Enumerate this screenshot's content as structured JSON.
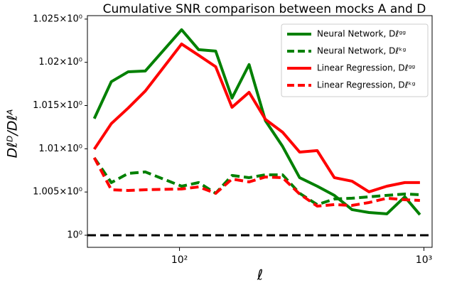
{
  "chart_data": {
    "type": "line",
    "title": "Cumulative SNR comparison between mocks A and D",
    "xlabel": "ℓ",
    "ylabel": "Dℓᴰ/Dℓᴬ",
    "xscale": "log",
    "xlim": [
      42,
      1080
    ],
    "ylim": [
      0.9986,
      1.0254
    ],
    "xticks": [
      {
        "value": 100,
        "label": "10²"
      },
      {
        "value": 1000,
        "label": "10³"
      }
    ],
    "yticks": [
      {
        "value": 1.0,
        "label": "10⁰"
      },
      {
        "value": 1.005,
        "label": "1.005×10⁰"
      },
      {
        "value": 1.01,
        "label": "1.01×10⁰"
      },
      {
        "value": 1.015,
        "label": "1.015×10⁰"
      },
      {
        "value": 1.02,
        "label": "1.02×10⁰"
      },
      {
        "value": 1.025,
        "label": "1.025×10⁰"
      }
    ],
    "hline": 1.0,
    "legend": "upper right",
    "x": [
      44.8,
      52.6,
      61.7,
      72.5,
      102,
      119.8,
      140.6,
      164,
      192.6,
      224.7,
      264,
      310,
      366,
      430,
      508,
      596,
      705,
      835,
      963
    ],
    "series": [
      {
        "name": "Neural Network, Dℓᵍᵍ",
        "color": "#008000",
        "dash": false,
        "values": [
          1.01349,
          1.01776,
          1.01891,
          1.019,
          1.02377,
          1.02146,
          1.0213,
          1.01587,
          1.01974,
          1.01324,
          1.01028,
          1.00666,
          1.00567,
          1.00461,
          1.00296,
          1.00263,
          1.00247,
          1.00444,
          1.00238
        ]
      },
      {
        "name": "Neural Network, Dℓᵏᵍ",
        "color": "#008000",
        "dash": true,
        "values": [
          1.00896,
          1.00609,
          1.00715,
          1.00732,
          1.00567,
          1.00609,
          1.00485,
          1.00691,
          1.00666,
          1.00699,
          1.00699,
          1.00485,
          1.00354,
          1.00419,
          1.00428,
          1.00444,
          1.00461,
          1.00477,
          1.00469
        ]
      },
      {
        "name": "Linear Regression, Dℓᵍᵍ",
        "color": "#ff0000",
        "dash": false,
        "values": [
          1.00995,
          1.01291,
          1.01472,
          1.01669,
          1.02212,
          1.02081,
          1.01949,
          1.0148,
          1.01653,
          1.0134,
          1.01192,
          1.00962,
          1.00979,
          1.00666,
          1.00625,
          1.00502,
          1.00567,
          1.00609,
          1.00609
        ]
      },
      {
        "name": "Linear Regression, Dℓᵏᵍ",
        "color": "#ff0000",
        "dash": true,
        "values": [
          1.00896,
          1.00526,
          1.00518,
          1.00526,
          1.00535,
          1.00559,
          1.00485,
          1.0065,
          1.00617,
          1.00674,
          1.00666,
          1.00477,
          1.00337,
          1.00354,
          1.00345,
          1.00378,
          1.00428,
          1.00411,
          1.00403
        ]
      }
    ]
  }
}
